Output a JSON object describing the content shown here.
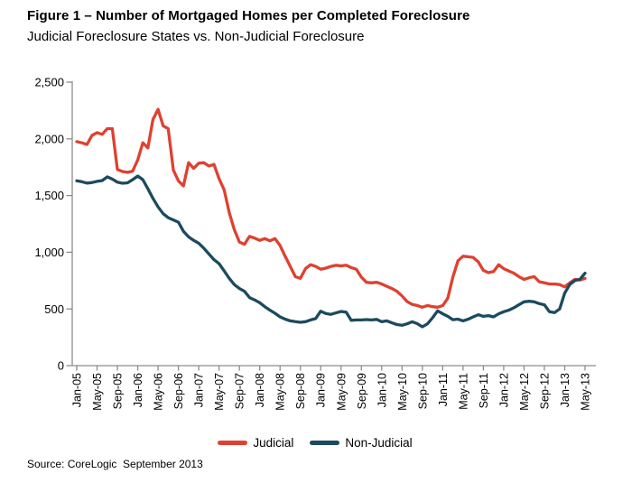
{
  "figure": {
    "title": "Figure 1 – Number of Mortgaged Homes per Completed Foreclosure",
    "subtitle": "Judicial Foreclosure States vs. Non-Judicial Foreclosure",
    "source": "Source: CoreLogic  September 2013"
  },
  "colors": {
    "judicial": "#DE4130",
    "non_judicial": "#1C4A5E",
    "axis": "#8C8C8C",
    "text": "#000000"
  },
  "chart_data": {
    "type": "line",
    "title": "Figure 1 – Number of Mortgaged Homes per Completed Foreclosure",
    "subtitle": "Judicial Foreclosure States vs. Non-Judicial Foreclosure",
    "xlabel": "",
    "ylabel": "",
    "ylim": [
      0,
      2500
    ],
    "y_ticks": [
      {
        "value": 0,
        "label": "0"
      },
      {
        "value": 500,
        "label": "500"
      },
      {
        "value": 1000,
        "label": "1,000"
      },
      {
        "value": 1500,
        "label": "1,500"
      },
      {
        "value": 2000,
        "label": "2,000"
      },
      {
        "value": 2500,
        "label": "2,500"
      }
    ],
    "x_frequency": "monthly",
    "x_range": [
      "Jan-05",
      "May-13"
    ],
    "x_tick_labels": [
      "Jan-05",
      "May-05",
      "Sep-05",
      "Jan-06",
      "May-06",
      "Sep-06",
      "Jan-07",
      "May-07",
      "Sep-07",
      "Jan-08",
      "May-08",
      "Sep-08",
      "Jan-09",
      "May-09",
      "Sep-09",
      "Jan-10",
      "May-10",
      "Sep-10",
      "Jan-11",
      "May-11",
      "Sep-11",
      "Jan-12",
      "May-12",
      "Sep-12",
      "Jan-13",
      "May-13"
    ],
    "x_ticks_every_n_months": 4,
    "grid": false,
    "legend_position": "bottom-center",
    "series": [
      {
        "name": "Judicial",
        "color": "#DE4130",
        "values": [
          1975,
          1965,
          1950,
          2030,
          2055,
          2040,
          2090,
          2090,
          1730,
          1712,
          1705,
          1715,
          1815,
          1965,
          1920,
          2170,
          2260,
          2115,
          2090,
          1725,
          1630,
          1585,
          1790,
          1740,
          1785,
          1790,
          1760,
          1775,
          1650,
          1550,
          1350,
          1200,
          1090,
          1070,
          1140,
          1125,
          1105,
          1120,
          1100,
          1120,
          1060,
          965,
          875,
          785,
          770,
          855,
          890,
          875,
          850,
          860,
          875,
          885,
          880,
          885,
          865,
          850,
          780,
          735,
          730,
          735,
          720,
          700,
          680,
          655,
          615,
          565,
          540,
          530,
          515,
          530,
          520,
          515,
          530,
          595,
          780,
          925,
          965,
          960,
          955,
          915,
          840,
          820,
          830,
          890,
          855,
          835,
          815,
          785,
          760,
          775,
          785,
          740,
          730,
          720,
          720,
          715,
          695,
          730,
          760,
          755,
          770
        ]
      },
      {
        "name": "Non-Judicial",
        "color": "#1C4A5E",
        "values": [
          1630,
          1622,
          1610,
          1615,
          1625,
          1632,
          1665,
          1645,
          1618,
          1608,
          1612,
          1640,
          1672,
          1640,
          1560,
          1475,
          1400,
          1340,
          1305,
          1285,
          1265,
          1185,
          1135,
          1105,
          1080,
          1035,
          985,
          935,
          900,
          835,
          770,
          715,
          680,
          655,
          600,
          580,
          555,
          520,
          490,
          462,
          430,
          410,
          395,
          388,
          382,
          388,
          403,
          415,
          480,
          460,
          452,
          465,
          478,
          472,
          400,
          403,
          403,
          406,
          403,
          408,
          387,
          395,
          377,
          362,
          356,
          369,
          387,
          370,
          342,
          369,
          422,
          483,
          457,
          435,
          405,
          410,
          395,
          409,
          430,
          449,
          435,
          441,
          430,
          457,
          475,
          489,
          510,
          537,
          563,
          568,
          563,
          547,
          537,
          475,
          467,
          500,
          640,
          715,
          750,
          762,
          815
        ]
      }
    ]
  }
}
